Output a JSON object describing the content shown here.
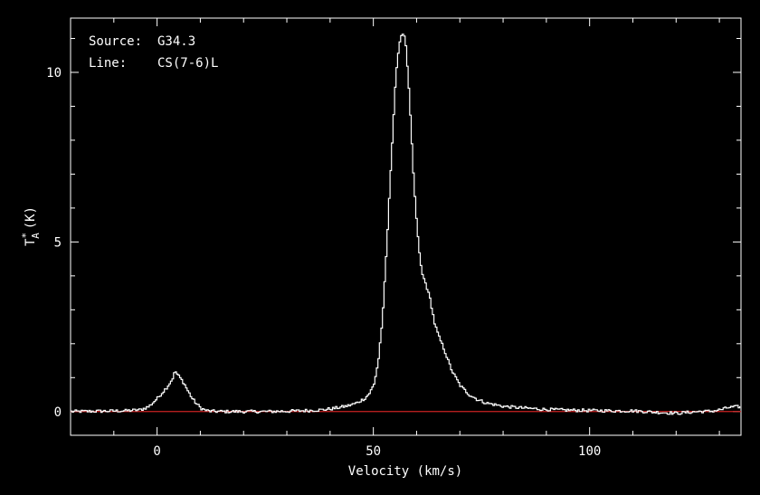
{
  "chart_data": {
    "type": "line",
    "annotations": {
      "source_label": "Source:",
      "source_value": "G34.3",
      "line_label": "Line:",
      "line_value": "CS(7-6)L"
    },
    "xlabel": "Velocity (km/s)",
    "ylabel": "T",
    "ylabel_sub": "A",
    "ylabel_sup": "*",
    "ylabel_unit": "(K)",
    "xlim": [
      -20,
      135
    ],
    "ylim": [
      -0.7,
      11.6
    ],
    "xticks": [
      0,
      50,
      100
    ],
    "yticks": [
      0,
      5,
      10
    ],
    "baseline": 0,
    "baseline_color": "#cc2222",
    "line_color": "#ffffff",
    "series": [
      {
        "x": [
          -20,
          -14,
          -8,
          -4,
          -2,
          0,
          1,
          2,
          3,
          3.5,
          4,
          4.5,
          5,
          6,
          7,
          8,
          9,
          10,
          11,
          12,
          15,
          20,
          25,
          30,
          35,
          38,
          40,
          42,
          44,
          46,
          48,
          49,
          50,
          51,
          52,
          53,
          54,
          55,
          56,
          56.5,
          57,
          57.5,
          58,
          58.5,
          59,
          60,
          61,
          62,
          63,
          64,
          65,
          66,
          67,
          68,
          70,
          72,
          74,
          76,
          78,
          80,
          85,
          90,
          95,
          100,
          105,
          110,
          115,
          120,
          125,
          128,
          130,
          132,
          135
        ],
        "y": [
          0.0,
          0.01,
          0.02,
          0.05,
          0.15,
          0.4,
          0.55,
          0.7,
          0.88,
          1.0,
          1.2,
          1.1,
          1.02,
          0.85,
          0.6,
          0.38,
          0.22,
          0.1,
          0.04,
          0.01,
          0.0,
          0.0,
          0.0,
          0.01,
          0.03,
          0.05,
          0.08,
          0.12,
          0.17,
          0.25,
          0.4,
          0.55,
          0.8,
          1.5,
          2.8,
          5.0,
          7.5,
          9.8,
          11.0,
          11.15,
          11.1,
          10.6,
          9.6,
          8.5,
          7.2,
          5.3,
          4.1,
          3.75,
          3.3,
          2.6,
          2.2,
          1.9,
          1.55,
          1.2,
          0.75,
          0.5,
          0.35,
          0.25,
          0.2,
          0.15,
          0.1,
          0.06,
          0.04,
          0.03,
          0.02,
          0.02,
          -0.02,
          -0.05,
          0.0,
          0.01,
          0.05,
          0.12,
          0.15
        ]
      }
    ]
  }
}
